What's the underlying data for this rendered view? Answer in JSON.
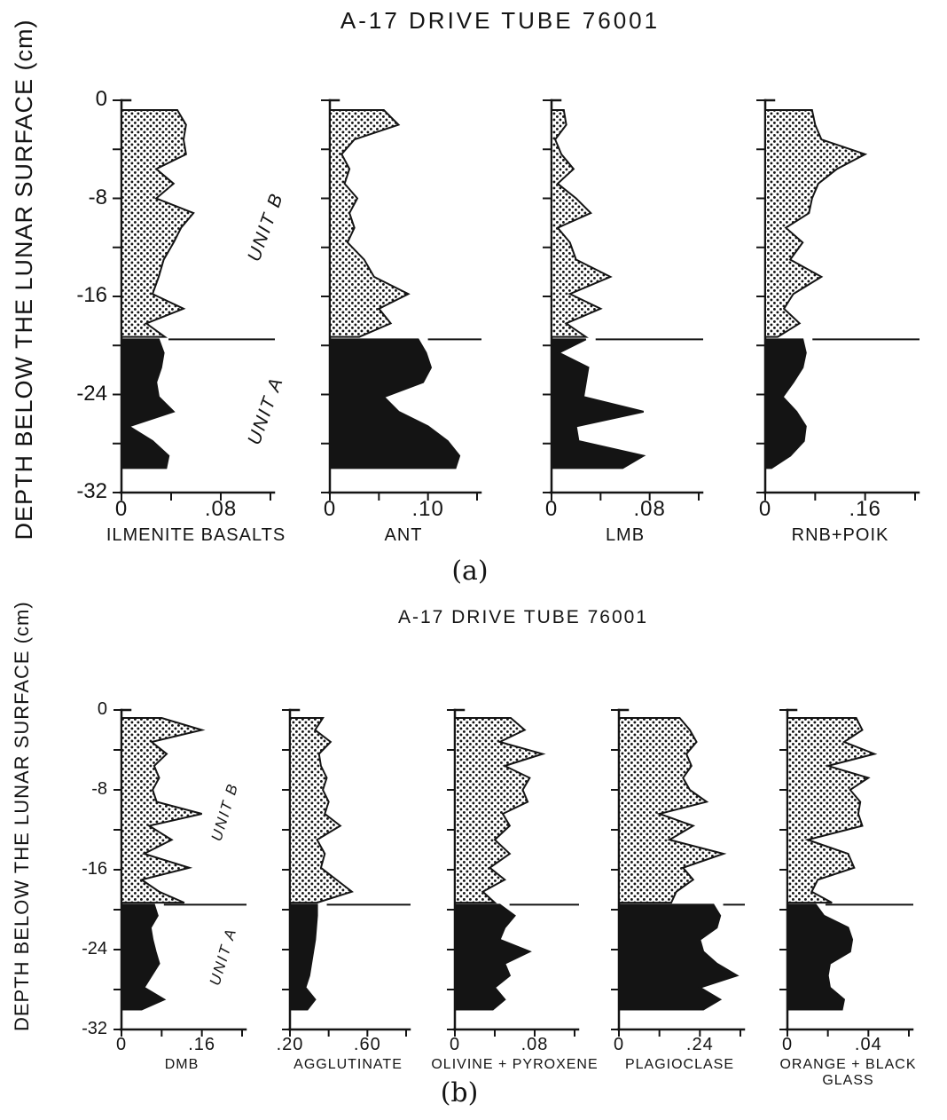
{
  "chart_data": {
    "type": "area",
    "description_title": "A-17 DRIVE TUBE 76001",
    "depth_grid_upper": [
      -0.8,
      -2,
      -3.2,
      -4.4,
      -5.6,
      -6.8,
      -8,
      -9.2,
      -10.4,
      -11.6,
      -13,
      -14.4,
      -15.8,
      -17,
      -18.2,
      -19.3
    ],
    "depth_grid_lower": [
      -19.5,
      -20.6,
      -21.8,
      -23,
      -24.2,
      -25.4,
      -26.6,
      -27.8,
      -29,
      -30
    ],
    "colors": {
      "ink": "#141414",
      "background": "#ffffff"
    },
    "panels": [
      {
        "id": "a",
        "title": "A-17 DRIVE TUBE 76001",
        "panel_label": "(a)",
        "depth_axis": {
          "label": "DEPTH BELOW THE LUNAR SURFACE (cm)",
          "major_ticks": [
            0,
            -8,
            -16,
            -24,
            -32
          ],
          "tick_labels": [
            "0",
            "-8",
            "-16",
            "-24",
            "-32"
          ],
          "minor_step": 4,
          "min": -32,
          "max": 0
        },
        "units": {
          "upper": {
            "name": "UNIT B",
            "fill": "stipple",
            "depth_range": [
              0,
              -19.5
            ]
          },
          "lower": {
            "name": "UNIT A",
            "fill": "solid",
            "depth_range": [
              -19.5,
              -30
            ]
          }
        },
        "boundary_depth": -19.5,
        "charts": [
          {
            "label": "ILMENITE BASALTS",
            "x_min": 0,
            "x_max": 0.12,
            "x_ticks": [
              0,
              0.04,
              0.08,
              0.12
            ],
            "x_tick_labels": [
              "0",
              "",
              ".08",
              ""
            ],
            "unit_b_values": [
              0.045,
              0.052,
              0.05,
              0.052,
              0.028,
              0.042,
              0.028,
              0.058,
              0.048,
              0.042,
              0.034,
              0.03,
              0.025,
              0.05,
              0.02,
              0.035
            ],
            "unit_a_values": [
              0.03,
              0.034,
              0.032,
              0.028,
              0.03,
              0.042,
              0.006,
              0.025,
              0.038,
              0.036
            ]
          },
          {
            "label": "ANT",
            "x_min": 0,
            "x_max": 0.15,
            "x_ticks": [
              0,
              0.05,
              0.1,
              0.15
            ],
            "x_tick_labels": [
              "0",
              "",
              ".10",
              ""
            ],
            "unit_b_values": [
              0.055,
              0.07,
              0.025,
              0.012,
              0.02,
              0.015,
              0.028,
              0.02,
              0.025,
              0.018,
              0.035,
              0.045,
              0.08,
              0.05,
              0.062,
              0.03
            ],
            "unit_a_values": [
              0.09,
              0.098,
              0.103,
              0.095,
              0.055,
              0.07,
              0.1,
              0.12,
              0.132,
              0.128
            ]
          },
          {
            "label": "LMB",
            "x_min": 0,
            "x_max": 0.12,
            "x_ticks": [
              0,
              0.04,
              0.08,
              0.12
            ],
            "x_tick_labels": [
              "0",
              "",
              ".08",
              ""
            ],
            "unit_b_values": [
              0.01,
              0.012,
              0.003,
              0.008,
              0.018,
              0.005,
              0.02,
              0.032,
              0.005,
              0.015,
              0.02,
              0.048,
              0.015,
              0.04,
              0.012,
              0.028
            ],
            "unit_a_values": [
              0.028,
              0.006,
              0.03,
              0.028,
              0.026,
              0.075,
              0.02,
              0.022,
              0.075,
              0.058
            ]
          },
          {
            "label": "RNB+POIK",
            "x_min": 0,
            "x_max": 0.24,
            "x_ticks": [
              0,
              0.08,
              0.16,
              0.24
            ],
            "x_tick_labels": [
              "0",
              "",
              ".16",
              ""
            ],
            "unit_b_values": [
              0.075,
              0.08,
              0.09,
              0.16,
              0.115,
              0.085,
              0.075,
              0.07,
              0.033,
              0.06,
              0.04,
              0.09,
              0.045,
              0.03,
              0.055,
              0.02
            ],
            "unit_a_values": [
              0.06,
              0.065,
              0.06,
              0.045,
              0.028,
              0.05,
              0.065,
              0.062,
              0.04,
              0.01
            ]
          }
        ]
      },
      {
        "id": "b",
        "title": "A-17 DRIVE TUBE 76001",
        "panel_label": "(b)",
        "depth_axis": {
          "label": "DEPTH BELOW THE LUNAR SURFACE (cm)",
          "major_ticks": [
            0,
            -8,
            -16,
            -24,
            -32
          ],
          "tick_labels": [
            "0",
            "-8",
            "-16",
            "-24",
            "-32"
          ],
          "minor_step": 4,
          "min": -32,
          "max": 0
        },
        "units": {
          "upper": {
            "name": "UNIT B",
            "fill": "stipple",
            "depth_range": [
              0,
              -19.5
            ]
          },
          "lower": {
            "name": "UNIT A",
            "fill": "solid",
            "depth_range": [
              -19.5,
              -30
            ]
          }
        },
        "boundary_depth": -19.5,
        "charts": [
          {
            "label": "DMB",
            "x_min": 0,
            "x_max": 0.24,
            "x_ticks": [
              0,
              0.08,
              0.16,
              0.24
            ],
            "x_tick_labels": [
              "0",
              "",
              ".16",
              ""
            ],
            "unit_b_values": [
              0.08,
              0.16,
              0.06,
              0.09,
              0.065,
              0.075,
              0.062,
              0.07,
              0.16,
              0.055,
              0.1,
              0.045,
              0.135,
              0.04,
              0.075,
              0.125
            ],
            "unit_a_values": [
              0.065,
              0.072,
              0.058,
              0.062,
              0.068,
              0.075,
              0.06,
              0.045,
              0.085,
              0.04
            ]
          },
          {
            "label": "AGGLUTINATE",
            "x_min": 0.2,
            "x_max": 0.8,
            "x_ticks": [
              0.2,
              0.4,
              0.6,
              0.8
            ],
            "x_tick_labels": [
              ".20",
              "",
              ".60",
              ""
            ],
            "unit_b_values": [
              0.37,
              0.33,
              0.41,
              0.35,
              0.36,
              0.39,
              0.37,
              0.4,
              0.38,
              0.46,
              0.34,
              0.38,
              0.36,
              0.44,
              0.52,
              0.34
            ],
            "unit_a_values": [
              0.34,
              0.34,
              0.335,
              0.33,
              0.32,
              0.31,
              0.3,
              0.28,
              0.33,
              0.29
            ]
          },
          {
            "label": "OLIVINE + PYROXENE",
            "x_min": 0,
            "x_max": 0.12,
            "x_ticks": [
              0,
              0.04,
              0.08,
              0.12
            ],
            "x_tick_labels": [
              "0",
              "",
              ".08",
              ""
            ],
            "unit_b_values": [
              0.056,
              0.07,
              0.045,
              0.088,
              0.05,
              0.075,
              0.068,
              0.073,
              0.048,
              0.055,
              0.04,
              0.055,
              0.035,
              0.05,
              0.028,
              0.04
            ],
            "unit_a_values": [
              0.045,
              0.06,
              0.05,
              0.045,
              0.075,
              0.05,
              0.055,
              0.04,
              0.05,
              0.038
            ]
          },
          {
            "label": "PLAGIOCLASE",
            "x_min": 0,
            "x_max": 0.36,
            "x_ticks": [
              0,
              0.12,
              0.24,
              0.36
            ],
            "x_tick_labels": [
              "0",
              "",
              ".24",
              ""
            ],
            "unit_b_values": [
              0.18,
              0.21,
              0.23,
              0.2,
              0.215,
              0.19,
              0.21,
              0.26,
              0.12,
              0.22,
              0.15,
              0.31,
              0.19,
              0.22,
              0.17,
              0.155
            ],
            "unit_a_values": [
              0.28,
              0.3,
              0.29,
              0.24,
              0.25,
              0.29,
              0.35,
              0.24,
              0.3,
              0.25
            ]
          },
          {
            "label": "ORANGE + BLACK\nGLASS",
            "x_min": 0,
            "x_max": 0.06,
            "x_ticks": [
              0,
              0.02,
              0.04,
              0.06
            ],
            "x_tick_labels": [
              "0",
              "",
              ".04",
              ""
            ],
            "unit_b_values": [
              0.034,
              0.037,
              0.028,
              0.043,
              0.02,
              0.04,
              0.031,
              0.036,
              0.035,
              0.037,
              0.01,
              0.03,
              0.033,
              0.015,
              0.012,
              0.022
            ],
            "unit_a_values": [
              0.014,
              0.018,
              0.03,
              0.032,
              0.031,
              0.021,
              0.02,
              0.021,
              0.028,
              0.027
            ]
          }
        ]
      }
    ]
  }
}
